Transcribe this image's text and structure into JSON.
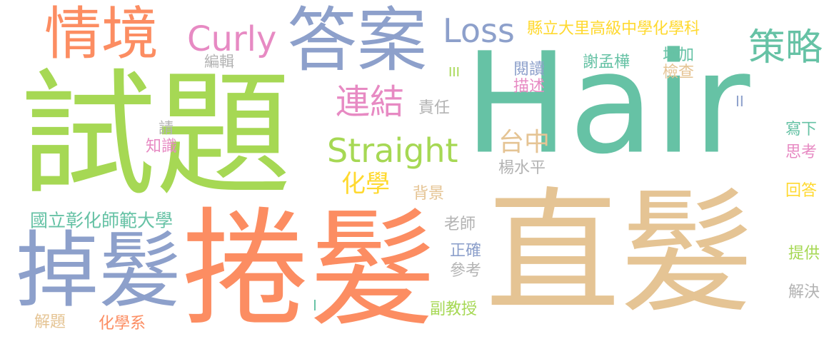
{
  "palette": {
    "green": "#a6d854",
    "teal": "#66c2a5",
    "salmon": "#fc8d62",
    "tan": "#e5c494",
    "blue": "#8da0cb",
    "pink": "#e78ac3",
    "yellow": "#ffd92f",
    "gray": "#b3b3b3"
  },
  "words": [
    {
      "text": "Hair",
      "color": "teal"
    },
    {
      "text": "試題",
      "color": "green"
    },
    {
      "text": "捲髮",
      "color": "salmon"
    },
    {
      "text": "直髮",
      "color": "tan"
    },
    {
      "text": "掉髮",
      "color": "blue"
    },
    {
      "text": "答案",
      "color": "blue"
    },
    {
      "text": "情境",
      "color": "salmon"
    },
    {
      "text": "Curly",
      "color": "pink"
    },
    {
      "text": "Loss",
      "color": "blue"
    },
    {
      "text": "Straight",
      "color": "green"
    },
    {
      "text": "策略",
      "color": "teal"
    },
    {
      "text": "連結",
      "color": "pink"
    },
    {
      "text": "台中",
      "color": "tan"
    },
    {
      "text": "化學",
      "color": "yellow"
    },
    {
      "text": "縣立大里高級中學化學科",
      "color": "yellow"
    },
    {
      "text": "國立彰化師範大學",
      "color": "teal"
    },
    {
      "text": "編輯",
      "color": "gray"
    },
    {
      "text": "閱讀",
      "color": "blue"
    },
    {
      "text": "描述",
      "color": "pink"
    },
    {
      "text": "謝孟樺",
      "color": "teal"
    },
    {
      "text": "增加",
      "color": "teal"
    },
    {
      "text": "檢查",
      "color": "tan"
    },
    {
      "text": "責任",
      "color": "gray"
    },
    {
      "text": "請",
      "color": "gray"
    },
    {
      "text": "知識",
      "color": "pink"
    },
    {
      "text": "楊水平",
      "color": "gray"
    },
    {
      "text": "寫下",
      "color": "teal"
    },
    {
      "text": "思考",
      "color": "pink"
    },
    {
      "text": "背景",
      "color": "tan"
    },
    {
      "text": "回答",
      "color": "yellow"
    },
    {
      "text": "老師",
      "color": "gray"
    },
    {
      "text": "正確",
      "color": "blue"
    },
    {
      "text": "參考",
      "color": "gray"
    },
    {
      "text": "提供",
      "color": "green"
    },
    {
      "text": "解決",
      "color": "gray"
    },
    {
      "text": "副教授",
      "color": "green"
    },
    {
      "text": "解題",
      "color": "tan"
    },
    {
      "text": "化學系",
      "color": "salmon"
    },
    {
      "text": "III",
      "color": "green"
    },
    {
      "text": "II",
      "color": "blue"
    },
    {
      "text": "I",
      "color": "teal"
    }
  ]
}
